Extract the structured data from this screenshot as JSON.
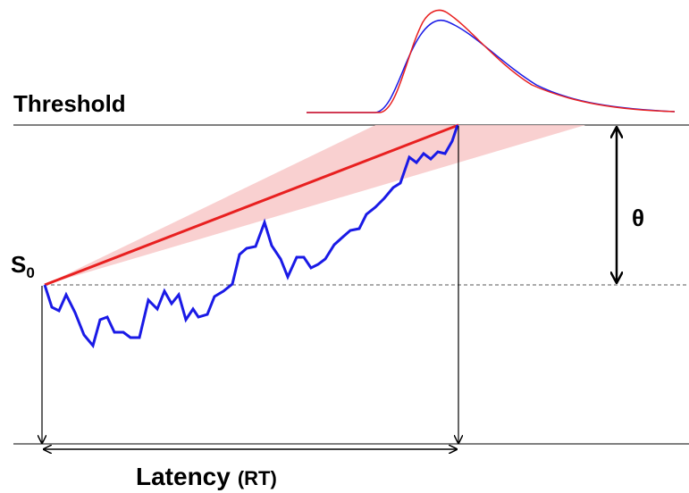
{
  "threshold_label": "Threshold",
  "start_label": "S",
  "start_subscript": "0",
  "theta_label": "θ",
  "latency_label": "Latency",
  "latency_unit": "(RT)"
}
